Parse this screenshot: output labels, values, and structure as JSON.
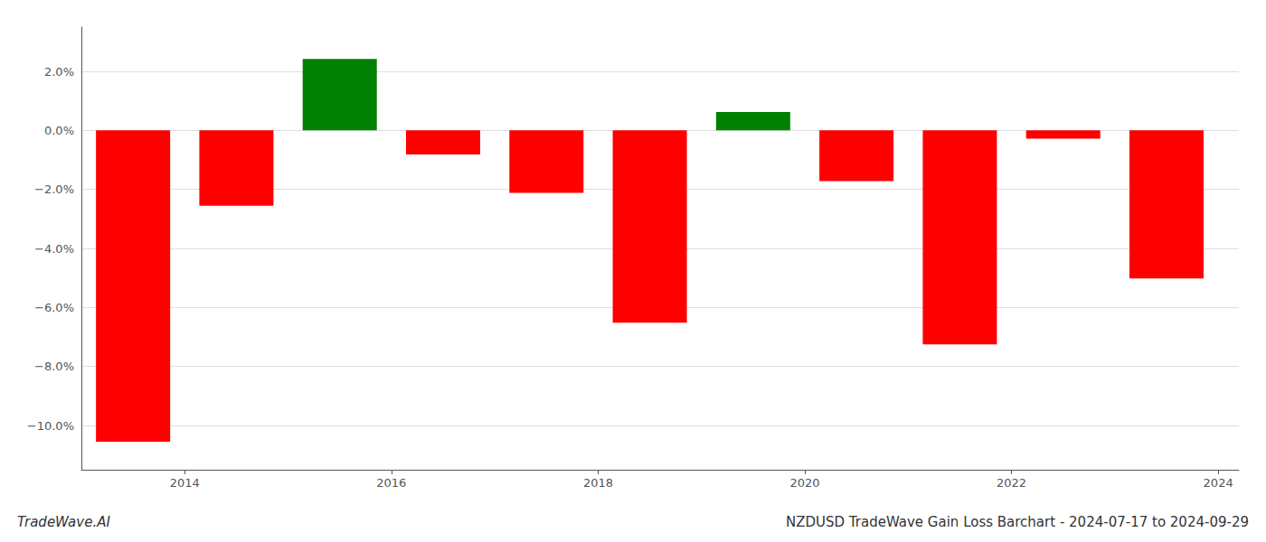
{
  "chart_data": {
    "type": "bar",
    "title": "NZDUSD TradeWave Gain Loss Barchart - 2024-07-17 to 2024-09-29",
    "annotations": [
      "TradeWave.AI"
    ],
    "x": [
      2013.5,
      2014.5,
      2015.5,
      2016.5,
      2017.5,
      2018.5,
      2019.5,
      2020.5,
      2021.5,
      2022.5,
      2023.5
    ],
    "values": [
      -10.55,
      -2.55,
      2.42,
      -0.82,
      -2.12,
      -6.52,
      0.62,
      -1.72,
      -7.25,
      -0.28,
      -5.02
    ],
    "colors": [
      "#ff0000",
      "#ff0000",
      "#008000",
      "#ff0000",
      "#ff0000",
      "#ff0000",
      "#008000",
      "#ff0000",
      "#ff0000",
      "#ff0000",
      "#ff0000"
    ],
    "xlim": [
      2013.0,
      2024.2
    ],
    "xticks": [
      2014,
      2016,
      2018,
      2020,
      2022,
      2024
    ],
    "ylim": [
      -11.5,
      3.5
    ],
    "yticks": [
      {
        "value": 2.0,
        "label": "2.0%"
      },
      {
        "value": 0.0,
        "label": "0.0%"
      },
      {
        "value": -2.0,
        "label": "−2.0%"
      },
      {
        "value": -4.0,
        "label": "−4.0%"
      },
      {
        "value": -6.0,
        "label": "−6.0%"
      },
      {
        "value": -8.0,
        "label": "−8.0%"
      },
      {
        "value": -10.0,
        "label": "−10.0%"
      }
    ],
    "grid": true
  }
}
